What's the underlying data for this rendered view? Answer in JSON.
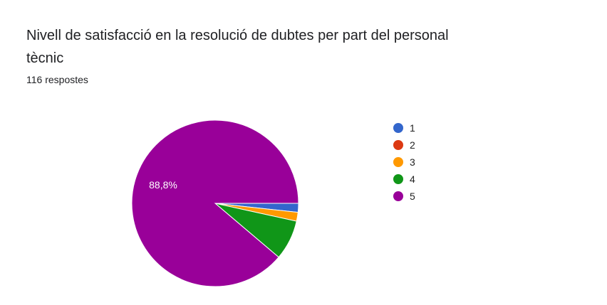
{
  "title": "Nivell de satisfacció en la resolució de dubtes per part del personal tècnic",
  "subtitle": "116 respostes",
  "chart_data": {
    "type": "pie",
    "categories": [
      "1",
      "2",
      "3",
      "4",
      "5"
    ],
    "values": [
      2,
      0,
      2,
      9,
      103
    ],
    "colors": [
      "#3366cc",
      "#dc3912",
      "#ff9900",
      "#109618",
      "#990099"
    ],
    "data_labels": [
      "",
      "",
      "",
      "",
      "88,8%"
    ],
    "legend_position": "right"
  }
}
